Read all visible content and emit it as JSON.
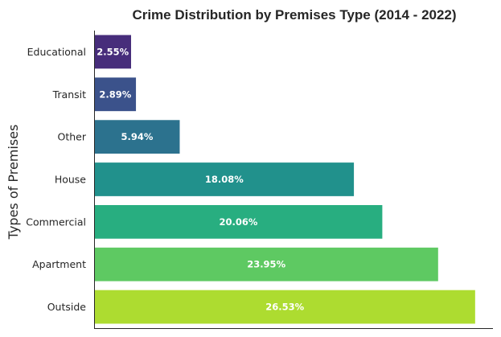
{
  "chart_data": {
    "type": "bar",
    "orientation": "horizontal",
    "title": "Crime Distribution by Premises Type (2014 - 2022)",
    "xlabel": "",
    "ylabel": "Types of Premises",
    "categories": [
      "Educational",
      "Transit",
      "Other",
      "House",
      "Commercial",
      "Apartment",
      "Outside"
    ],
    "values": [
      2.55,
      2.89,
      5.94,
      18.08,
      20.06,
      23.95,
      26.53
    ],
    "data_labels": [
      "2.55%",
      "2.89%",
      "5.94%",
      "18.08%",
      "20.06%",
      "23.95%",
      "26.53%"
    ],
    "colors": [
      "#472d7b",
      "#3b528b",
      "#2c728e",
      "#21918c",
      "#28ae80",
      "#5ec962",
      "#addc30"
    ],
    "xlim": [
      0,
      27.8
    ],
    "grid": false,
    "legend": "none"
  }
}
